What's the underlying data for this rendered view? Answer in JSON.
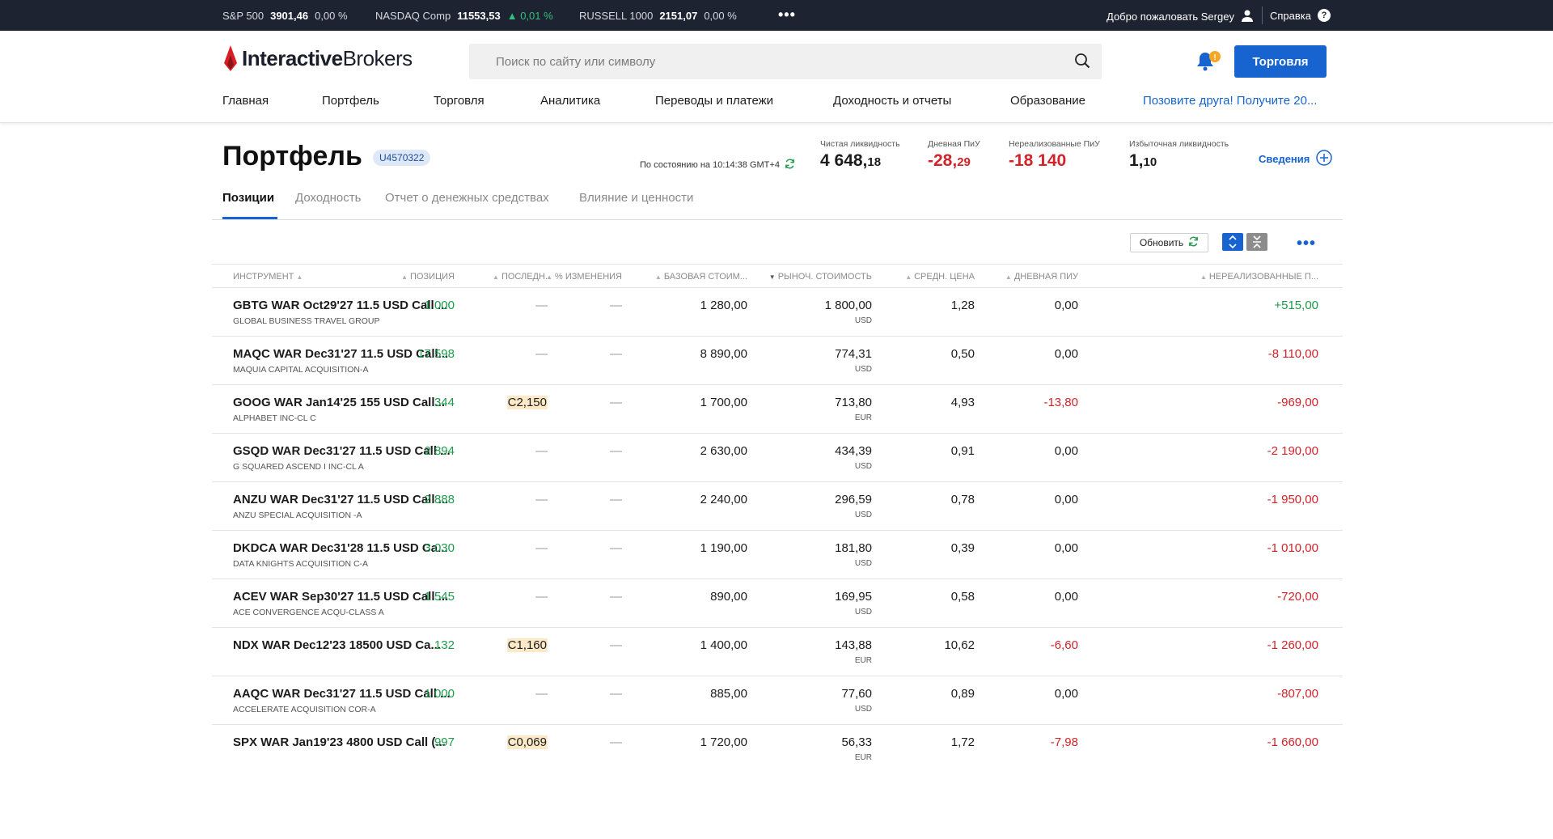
{
  "ticker": {
    "quotes": [
      {
        "name": "S&P 500",
        "value": "3901,46",
        "change": "0,00 %",
        "up": false
      },
      {
        "name": "NASDAQ Comp",
        "value": "11553,53",
        "change": "▲ 0,01 %",
        "up": true
      },
      {
        "name": "RUSSELL 1000",
        "value": "2151,07",
        "change": "0,00 %",
        "up": false
      }
    ],
    "more": "•••",
    "welcome": "Добро пожаловать Sergey",
    "help": "Справка",
    "help_mark": "?"
  },
  "header": {
    "logo_bold": "Interactive",
    "logo_light": "Brokers",
    "search_placeholder": "Поиск по сайту или символу",
    "trade_button": "Торговля",
    "bell_badge": "!"
  },
  "nav": {
    "items": [
      "Главная",
      "Портфель",
      "Торговля",
      "Аналитика",
      "Переводы и платежи",
      "Доходность и отчеты",
      "Образование"
    ],
    "invite": "Позовите друга! Получите 20..."
  },
  "portfolio": {
    "title": "Портфель",
    "account": "U4570322",
    "as_of": "По состоянию на 10:14:38 GMT+4",
    "metrics": [
      {
        "label": "Чистая ликвидность",
        "main": "4 648,",
        "small": "18",
        "negative": false
      },
      {
        "label": "Дневная ПиУ",
        "main": "-28,",
        "small": "29",
        "negative": true
      },
      {
        "label": "Нереализованные ПиУ",
        "main": "-18 140",
        "small": "",
        "negative": true
      },
      {
        "label": "Избыточная ликвидность",
        "main": "1,",
        "small": "10",
        "negative": false
      }
    ],
    "details": "Сведения"
  },
  "tabs": [
    "Позиции",
    "Доходность",
    "Отчет о денежных средствах",
    "Влияние и ценности"
  ],
  "toolbar": {
    "refresh": "Обновить",
    "more": "•••"
  },
  "table": {
    "columns": [
      "ИНСТРУМЕНТ",
      "ПОЗИЦИЯ",
      "ПОСЛЕДН.",
      "% ИЗМЕНЕНИЯ",
      "БАЗОВАЯ СТОИМ...",
      "РЫНОЧ. СТОИМОСТЬ",
      "СРЕДН. ЦЕНА",
      "ДНЕВНАЯ ПИУ",
      "НЕРЕАЛИЗОВАННЫЕ П..."
    ],
    "rows": [
      {
        "symbol": "GBTG WAR Oct29'27 11.5 USD Call ...",
        "desc": "GLOBAL BUSINESS TRAVEL GROUP",
        "position": "1 000",
        "last": "—",
        "last_hl": false,
        "chg": "—",
        "cost": "1 280,00",
        "mkt": "1 800,00",
        "cur": "USD",
        "avg": "1,28",
        "daily": "0,00",
        "daily_neg": false,
        "unr": "+515,00",
        "unr_sign": "pos"
      },
      {
        "symbol": "MAQC WAR Dec31'27 11.5 USD Call...",
        "desc": "MAQUIA CAPITAL ACQUISITION-A",
        "position": "17 598",
        "last": "—",
        "last_hl": false,
        "chg": "—",
        "cost": "8 890,00",
        "mkt": "774,31",
        "cur": "USD",
        "avg": "0,50",
        "daily": "0,00",
        "daily_neg": false,
        "unr": "-8 110,00",
        "unr_sign": "neg"
      },
      {
        "symbol": "GOOG WAR Jan14'25 155 USD Call...",
        "desc": "ALPHABET INC-CL C",
        "position": "344",
        "last": "C2,150",
        "last_hl": true,
        "chg": "—",
        "cost": "1 700,00",
        "mkt": "713,80",
        "cur": "EUR",
        "avg": "4,93",
        "daily": "-13,80",
        "daily_neg": true,
        "unr": "-969,00",
        "unr_sign": "neg"
      },
      {
        "symbol": "GSQD WAR Dec31'27 11.5 USD Call ...",
        "desc": "G SQUARED ASCEND I INC-CL A",
        "position": "2 894",
        "last": "—",
        "last_hl": false,
        "chg": "—",
        "cost": "2 630,00",
        "mkt": "434,39",
        "cur": "USD",
        "avg": "0,91",
        "daily": "0,00",
        "daily_neg": false,
        "unr": "-2 190,00",
        "unr_sign": "neg"
      },
      {
        "symbol": "ANZU WAR Dec31'27 11.5 USD Call ...",
        "desc": "ANZU SPECIAL ACQUISITION -A",
        "position": "2 888",
        "last": "—",
        "last_hl": false,
        "chg": "—",
        "cost": "2 240,00",
        "mkt": "296,59",
        "cur": "USD",
        "avg": "0,78",
        "daily": "0,00",
        "daily_neg": false,
        "unr": "-1 950,00",
        "unr_sign": "neg"
      },
      {
        "symbol": "DKDCA WAR Dec31'28 11.5 USD Ca...",
        "desc": "DATA KNIGHTS ACQUISITION C-A",
        "position": "3 030",
        "last": "—",
        "last_hl": false,
        "chg": "—",
        "cost": "1 190,00",
        "mkt": "181,80",
        "cur": "USD",
        "avg": "0,39",
        "daily": "0,00",
        "daily_neg": false,
        "unr": "-1 010,00",
        "unr_sign": "neg"
      },
      {
        "symbol": "ACEV WAR Sep30'27 11.5 USD Call ...",
        "desc": "ACE CONVERGENCE ACQU-CLASS A",
        "position": "1 545",
        "last": "—",
        "last_hl": false,
        "chg": "—",
        "cost": "890,00",
        "mkt": "169,95",
        "cur": "USD",
        "avg": "0,58",
        "daily": "0,00",
        "daily_neg": false,
        "unr": "-720,00",
        "unr_sign": "neg"
      },
      {
        "symbol": "NDX WAR Dec12'23 18500 USD Ca...",
        "desc": "",
        "position": "132",
        "last": "C1,160",
        "last_hl": true,
        "chg": "—",
        "cost": "1 400,00",
        "mkt": "143,88",
        "cur": "EUR",
        "avg": "10,62",
        "daily": "-6,60",
        "daily_neg": true,
        "unr": "-1 260,00",
        "unr_sign": "neg"
      },
      {
        "symbol": "AAQC WAR Dec31'27 11.5 USD Call ...",
        "desc": "ACCELERATE ACQUISITION COR-A",
        "position": "1 000",
        "last": "—",
        "last_hl": false,
        "chg": "—",
        "cost": "885,00",
        "mkt": "77,60",
        "cur": "USD",
        "avg": "0,89",
        "daily": "0,00",
        "daily_neg": false,
        "unr": "-807,00",
        "unr_sign": "neg"
      },
      {
        "symbol": "SPX WAR Jan19'23 4800 USD Call (...",
        "desc": "",
        "position": "997",
        "last": "C0,069",
        "last_hl": true,
        "chg": "—",
        "cost": "1 720,00",
        "mkt": "56,33",
        "cur": "EUR",
        "avg": "1,72",
        "daily": "-7,98",
        "daily_neg": true,
        "unr": "-1 660,00",
        "unr_sign": "neg"
      }
    ]
  },
  "colors": {
    "accent": "#1763d0",
    "negative": "#d1232a",
    "positive": "#1f9a4c",
    "topbar": "#1d2331"
  }
}
